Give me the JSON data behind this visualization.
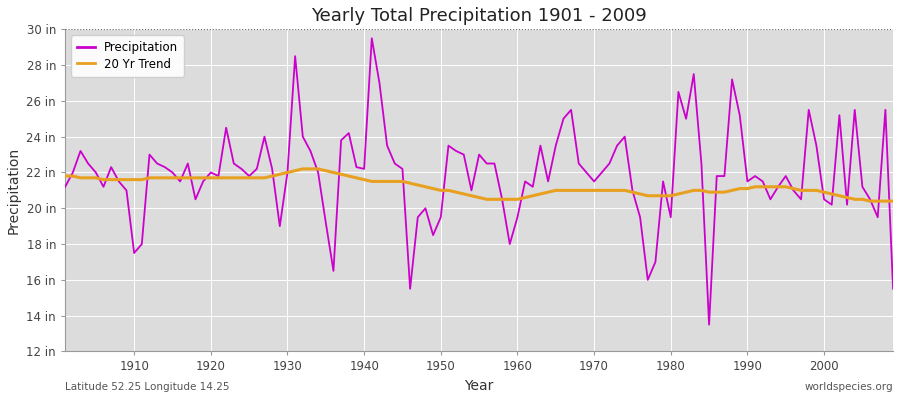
{
  "title": "Yearly Total Precipitation 1901 - 2009",
  "xlabel": "Year",
  "ylabel": "Precipitation",
  "lat_lon_label": "Latitude 52.25 Longitude 14.25",
  "source_label": "worldspecies.org",
  "xlim": [
    1901,
    2009
  ],
  "ylim": [
    12,
    30
  ],
  "yticks": [
    12,
    14,
    16,
    18,
    20,
    22,
    24,
    26,
    28,
    30
  ],
  "ytick_labels": [
    "12 in",
    "14 in",
    "16 in",
    "18 in",
    "20 in",
    "22 in",
    "24 in",
    "26 in",
    "28 in",
    "30 in"
  ],
  "xticks": [
    1910,
    1920,
    1930,
    1940,
    1950,
    1960,
    1970,
    1980,
    1990,
    2000
  ],
  "fig_bg_color": "#ffffff",
  "plot_bg_color": "#dcdcdc",
  "precip_color": "#cc00cc",
  "trend_color": "#e8a020",
  "precip_linewidth": 1.3,
  "trend_linewidth": 2.2,
  "years": [
    1901,
    1902,
    1903,
    1904,
    1905,
    1906,
    1907,
    1908,
    1909,
    1910,
    1911,
    1912,
    1913,
    1914,
    1915,
    1916,
    1917,
    1918,
    1919,
    1920,
    1921,
    1922,
    1923,
    1924,
    1925,
    1926,
    1927,
    1928,
    1929,
    1930,
    1931,
    1932,
    1933,
    1934,
    1935,
    1936,
    1937,
    1938,
    1939,
    1940,
    1941,
    1942,
    1943,
    1944,
    1945,
    1946,
    1947,
    1948,
    1949,
    1950,
    1951,
    1952,
    1953,
    1954,
    1955,
    1956,
    1957,
    1958,
    1959,
    1960,
    1961,
    1962,
    1963,
    1964,
    1965,
    1966,
    1967,
    1968,
    1969,
    1970,
    1971,
    1972,
    1973,
    1974,
    1975,
    1976,
    1977,
    1978,
    1979,
    1980,
    1981,
    1982,
    1983,
    1984,
    1985,
    1986,
    1987,
    1988,
    1989,
    1990,
    1991,
    1992,
    1993,
    1994,
    1995,
    1996,
    1997,
    1998,
    1999,
    2000,
    2001,
    2002,
    2003,
    2004,
    2005,
    2006,
    2007,
    2008,
    2009
  ],
  "precip": [
    21.2,
    22.0,
    23.2,
    22.5,
    22.0,
    21.2,
    22.3,
    21.5,
    21.0,
    17.5,
    18.0,
    23.0,
    22.5,
    22.3,
    22.0,
    21.5,
    22.5,
    20.5,
    21.5,
    22.0,
    21.8,
    24.5,
    22.5,
    22.2,
    21.8,
    22.2,
    24.0,
    22.2,
    19.0,
    22.0,
    28.5,
    24.0,
    23.2,
    22.0,
    19.2,
    16.5,
    23.8,
    24.2,
    22.3,
    22.2,
    29.5,
    27.0,
    23.5,
    22.5,
    22.2,
    15.5,
    19.5,
    20.0,
    18.5,
    19.5,
    23.5,
    23.2,
    23.0,
    21.0,
    23.0,
    22.5,
    22.5,
    20.5,
    18.0,
    19.5,
    21.5,
    21.2,
    23.5,
    21.5,
    23.5,
    25.0,
    25.5,
    22.5,
    22.0,
    21.5,
    22.0,
    22.5,
    23.5,
    24.0,
    21.0,
    19.5,
    16.0,
    17.0,
    21.5,
    19.5,
    26.5,
    25.0,
    27.5,
    22.5,
    13.5,
    21.8,
    21.8,
    27.2,
    25.2,
    21.5,
    21.8,
    21.5,
    20.5,
    21.2,
    21.8,
    21.0,
    20.5,
    25.5,
    23.5,
    20.5,
    20.2,
    25.2,
    20.2,
    25.5,
    21.2,
    20.5,
    19.5,
    25.5,
    15.5
  ],
  "trend": [
    21.8,
    21.8,
    21.7,
    21.7,
    21.7,
    21.6,
    21.6,
    21.6,
    21.6,
    21.6,
    21.6,
    21.7,
    21.7,
    21.7,
    21.7,
    21.7,
    21.7,
    21.7,
    21.7,
    21.7,
    21.7,
    21.7,
    21.7,
    21.7,
    21.7,
    21.7,
    21.7,
    21.8,
    21.9,
    22.0,
    22.1,
    22.2,
    22.2,
    22.2,
    22.1,
    22.0,
    21.9,
    21.8,
    21.7,
    21.6,
    21.5,
    21.5,
    21.5,
    21.5,
    21.5,
    21.4,
    21.3,
    21.2,
    21.1,
    21.0,
    21.0,
    20.9,
    20.8,
    20.7,
    20.6,
    20.5,
    20.5,
    20.5,
    20.5,
    20.5,
    20.6,
    20.7,
    20.8,
    20.9,
    21.0,
    21.0,
    21.0,
    21.0,
    21.0,
    21.0,
    21.0,
    21.0,
    21.0,
    21.0,
    20.9,
    20.8,
    20.7,
    20.7,
    20.7,
    20.7,
    20.8,
    20.9,
    21.0,
    21.0,
    20.9,
    20.9,
    20.9,
    21.0,
    21.1,
    21.1,
    21.2,
    21.2,
    21.2,
    21.2,
    21.2,
    21.1,
    21.0,
    21.0,
    21.0,
    20.9,
    20.8,
    20.7,
    20.6,
    20.5,
    20.5,
    20.4,
    20.4,
    20.4,
    20.4
  ]
}
